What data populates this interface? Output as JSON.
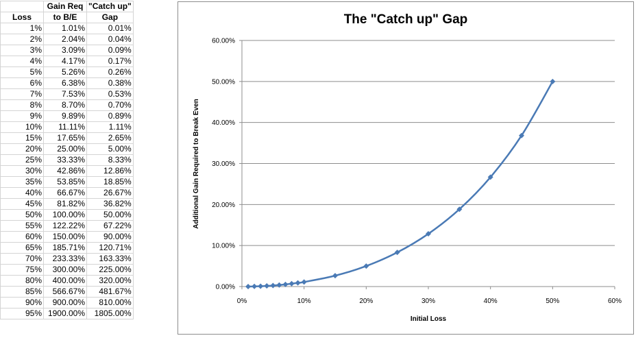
{
  "table": {
    "headers": [
      [
        "",
        "Gain Req",
        "\"Catch up\""
      ],
      [
        "Loss",
        "to B/E",
        "Gap"
      ]
    ],
    "rows": [
      [
        "1%",
        "1.01%",
        "0.01%"
      ],
      [
        "2%",
        "2.04%",
        "0.04%"
      ],
      [
        "3%",
        "3.09%",
        "0.09%"
      ],
      [
        "4%",
        "4.17%",
        "0.17%"
      ],
      [
        "5%",
        "5.26%",
        "0.26%"
      ],
      [
        "6%",
        "6.38%",
        "0.38%"
      ],
      [
        "7%",
        "7.53%",
        "0.53%"
      ],
      [
        "8%",
        "8.70%",
        "0.70%"
      ],
      [
        "9%",
        "9.89%",
        "0.89%"
      ],
      [
        "10%",
        "11.11%",
        "1.11%"
      ],
      [
        "15%",
        "17.65%",
        "2.65%"
      ],
      [
        "20%",
        "25.00%",
        "5.00%"
      ],
      [
        "25%",
        "33.33%",
        "8.33%"
      ],
      [
        "30%",
        "42.86%",
        "12.86%"
      ],
      [
        "35%",
        "53.85%",
        "18.85%"
      ],
      [
        "40%",
        "66.67%",
        "26.67%"
      ],
      [
        "45%",
        "81.82%",
        "36.82%"
      ],
      [
        "50%",
        "100.00%",
        "50.00%"
      ],
      [
        "55%",
        "122.22%",
        "67.22%"
      ],
      [
        "60%",
        "150.00%",
        "90.00%"
      ],
      [
        "65%",
        "185.71%",
        "120.71%"
      ],
      [
        "70%",
        "233.33%",
        "163.33%"
      ],
      [
        "75%",
        "300.00%",
        "225.00%"
      ],
      [
        "80%",
        "400.00%",
        "320.00%"
      ],
      [
        "85%",
        "566.67%",
        "481.67%"
      ],
      [
        "90%",
        "900.00%",
        "810.00%"
      ],
      [
        "95%",
        "1900.00%",
        "1805.00%"
      ]
    ]
  },
  "chart_data": {
    "type": "scatter",
    "title": "The \"Catch up\" Gap",
    "xlabel": "Initial Loss",
    "ylabel": "Additional Gain Required to Break Even",
    "x_ticks": [
      "0%",
      "10%",
      "20%",
      "30%",
      "40%",
      "50%",
      "60%"
    ],
    "y_ticks": [
      "0.00%",
      "10.00%",
      "20.00%",
      "30.00%",
      "40.00%",
      "50.00%",
      "60.00%"
    ],
    "xlim": [
      0,
      0.6
    ],
    "ylim": [
      0,
      0.6
    ],
    "grid": "horizontal",
    "legend": "none",
    "smooth_line": true,
    "series": [
      {
        "color": "#4a7ab5",
        "marker": "diamond",
        "x": [
          0.01,
          0.02,
          0.03,
          0.04,
          0.05,
          0.06,
          0.07,
          0.08,
          0.09,
          0.1,
          0.15,
          0.2,
          0.25,
          0.3,
          0.35,
          0.4,
          0.45,
          0.5
        ],
        "y": [
          0.0001,
          0.0004,
          0.0009,
          0.0017,
          0.0026,
          0.0038,
          0.0053,
          0.007,
          0.0089,
          0.0111,
          0.0265,
          0.05,
          0.0833,
          0.1286,
          0.1885,
          0.2667,
          0.3682,
          0.5
        ]
      }
    ]
  }
}
